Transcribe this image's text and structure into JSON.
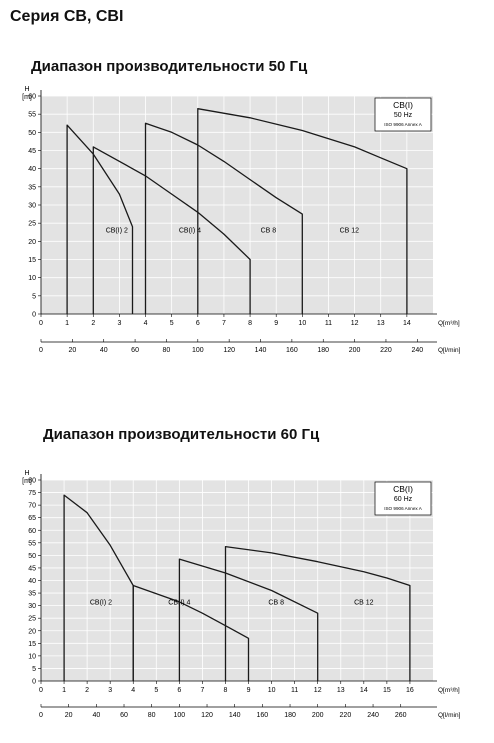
{
  "page": {
    "title": "Серия CB, CBI"
  },
  "chart_data": [
    {
      "type": "line",
      "title": "Диапазон производительности 50 Гц",
      "ylabel_top": "H",
      "ylabel_unit": "[m]",
      "xlabel": "Q[m³/h]",
      "x2label": "Q[l/min]",
      "ylim": [
        0,
        60
      ],
      "xlim": [
        0,
        15
      ],
      "yticks": [
        0,
        5,
        10,
        15,
        20,
        25,
        30,
        35,
        40,
        45,
        50,
        55,
        60
      ],
      "xticks": [
        0,
        1,
        2,
        3,
        4,
        5,
        6,
        7,
        8,
        9,
        10,
        11,
        12,
        13,
        14
      ],
      "x2ticks": [
        0,
        20,
        40,
        60,
        80,
        100,
        120,
        140,
        160,
        180,
        200,
        220,
        240
      ],
      "x2lim": [
        0,
        250
      ],
      "grid": true,
      "legend_box": {
        "line1": "CB(I)",
        "line2": "50 Hz",
        "line3": "ISO 9906 Annex A"
      },
      "series": [
        {
          "name": "CB(I) 2",
          "label_at": [
            2.9,
            22.5
          ],
          "points": [
            [
              1,
              0
            ],
            [
              1,
              52
            ],
            [
              2,
              44
            ],
            [
              3,
              33
            ],
            [
              3.5,
              24
            ],
            [
              3.5,
              0
            ]
          ]
        },
        {
          "name": "CB(I) 4",
          "label_at": [
            5.7,
            22.5
          ],
          "points": [
            [
              2,
              0
            ],
            [
              2,
              46
            ],
            [
              4,
              38
            ],
            [
              5,
              33
            ],
            [
              6,
              28
            ],
            [
              7,
              22
            ],
            [
              8,
              15
            ],
            [
              8,
              0
            ]
          ]
        },
        {
          "name": "CB 8",
          "label_at": [
            8.7,
            22.5
          ],
          "points": [
            [
              4,
              0
            ],
            [
              4,
              38
            ],
            [
              4,
              52.5
            ],
            [
              5,
              50
            ],
            [
              6,
              46.5
            ],
            [
              7,
              42
            ],
            [
              8,
              37
            ],
            [
              9,
              32
            ],
            [
              10,
              27.5
            ],
            [
              10,
              0
            ]
          ]
        },
        {
          "name": "CB 12",
          "label_at": [
            11.8,
            22.5
          ],
          "points": [
            [
              6,
              0
            ],
            [
              6,
              46.5
            ],
            [
              6,
              56.5
            ],
            [
              8,
              54
            ],
            [
              10,
              50.5
            ],
            [
              12,
              46
            ],
            [
              13,
              43
            ],
            [
              14,
              40
            ],
            [
              14,
              0
            ]
          ]
        }
      ]
    },
    {
      "type": "line",
      "title": "Диапазон производительности 60 Гц",
      "ylabel_top": "H",
      "ylabel_unit": "[m]",
      "xlabel": "Q[m³/h]",
      "x2label": "Q[l/min]",
      "ylim": [
        0,
        80
      ],
      "xlim": [
        0,
        17
      ],
      "yticks": [
        0,
        5,
        10,
        15,
        20,
        25,
        30,
        35,
        40,
        45,
        50,
        55,
        60,
        65,
        70,
        75,
        80
      ],
      "xticks": [
        0,
        1,
        2,
        3,
        4,
        5,
        6,
        7,
        8,
        9,
        10,
        11,
        12,
        13,
        14,
        15,
        16
      ],
      "x2ticks": [
        0,
        20,
        40,
        60,
        80,
        100,
        120,
        140,
        160,
        180,
        200,
        220,
        240,
        260
      ],
      "x2lim": [
        0,
        283.33
      ],
      "grid": true,
      "legend_box": {
        "line1": "CB(I)",
        "line2": "60 Hz",
        "line3": "ISO 9906 Annex A"
      },
      "series": [
        {
          "name": "CB(I) 2",
          "label_at": [
            2.6,
            30.5
          ],
          "points": [
            [
              1,
              0
            ],
            [
              1,
              74
            ],
            [
              2,
              67
            ],
            [
              3,
              54
            ],
            [
              4,
              38
            ],
            [
              4,
              0
            ]
          ]
        },
        {
          "name": "CB(I) 4",
          "label_at": [
            6.0,
            30.5
          ],
          "points": [
            [
              4,
              0
            ],
            [
              4,
              38
            ],
            [
              6,
              31.5
            ],
            [
              7,
              27
            ],
            [
              8,
              22
            ],
            [
              9,
              17
            ],
            [
              9,
              0
            ]
          ]
        },
        {
          "name": "CB 8",
          "label_at": [
            10.2,
            30.5
          ],
          "points": [
            [
              6,
              0
            ],
            [
              6,
              31.5
            ],
            [
              6,
              48.5
            ],
            [
              8,
              43
            ],
            [
              10,
              36
            ],
            [
              12,
              27
            ],
            [
              12,
              0
            ]
          ]
        },
        {
          "name": "CB 12",
          "label_at": [
            14.0,
            30.5
          ],
          "points": [
            [
              8,
              0
            ],
            [
              8,
              43
            ],
            [
              8,
              53.5
            ],
            [
              10,
              51
            ],
            [
              12,
              47.5
            ],
            [
              14,
              43.5
            ],
            [
              15,
              41
            ],
            [
              16,
              38
            ],
            [
              16,
              0
            ]
          ]
        }
      ]
    }
  ]
}
